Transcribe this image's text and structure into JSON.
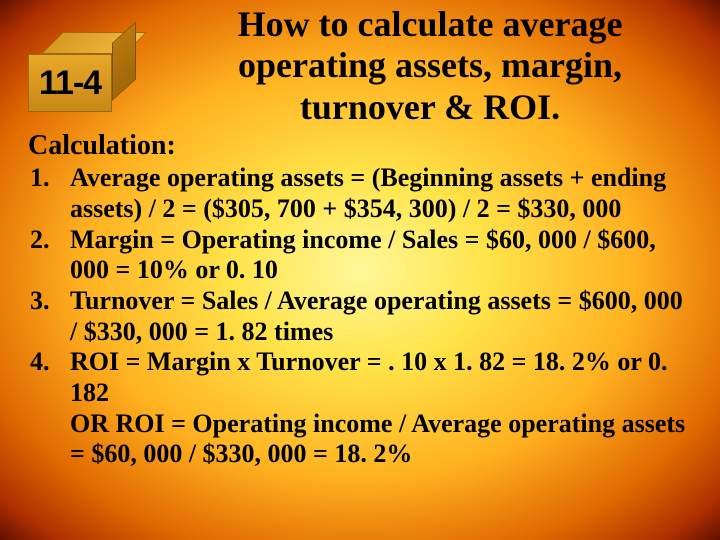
{
  "slide_number": "11-4",
  "title": "How to calculate average operating assets, margin, turnover & ROI.",
  "calc_heading": "Calculation:",
  "items": [
    {
      "num": "1.",
      "text": "Average operating assets = (Beginning assets + ending assets) / 2 = ($305, 700 + $354, 300) / 2 = $330, 000"
    },
    {
      "num": "2.",
      "text": "Margin = Operating income / Sales =    $60, 000 / $600, 000 = 10% or 0. 10"
    },
    {
      "num": "3.",
      "text": "Turnover = Sales / Average operating assets = $600, 000 / $330, 000 = 1. 82 times"
    },
    {
      "num": "4.",
      "text": "ROI = Margin x Turnover = . 10 x 1. 82 = 18. 2% or 0. 182"
    }
  ],
  "or_line": "OR ROI = Operating income / Average operating assets = $60, 000 / $330, 000 = 18. 2%",
  "colors": {
    "text": "#000000",
    "bg_center": "#fff89a",
    "bg_edge": "#601000",
    "cube_front": "#e8a828",
    "cube_side": "#a06808",
    "cube_top": "#f0b840"
  },
  "fonts": {
    "title_size": 36,
    "body_size": 26,
    "cube_size": 34
  }
}
